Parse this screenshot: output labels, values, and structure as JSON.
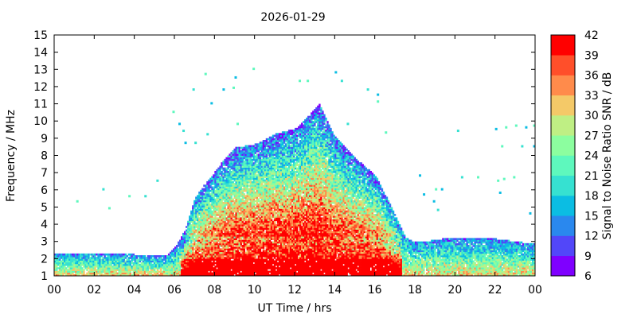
{
  "chart_data": {
    "type": "heatmap",
    "title": "2026-01-29",
    "xlabel": "UT Time / hrs",
    "ylabel": "Frequency / MHz",
    "xlim": [
      0,
      24
    ],
    "ylim": [
      1,
      15
    ],
    "x_ticks": [
      "00",
      "02",
      "04",
      "06",
      "08",
      "10",
      "12",
      "14",
      "16",
      "18",
      "20",
      "22",
      "00"
    ],
    "y_ticks": [
      "1",
      "2",
      "3",
      "4",
      "5",
      "6",
      "7",
      "8",
      "9",
      "10",
      "11",
      "12",
      "13",
      "14",
      "15"
    ],
    "colorbar": {
      "label": "Signal to Noise Ratio SNR / dB",
      "range": [
        6,
        42
      ],
      "ticks": [
        "6",
        "9",
        "12",
        "15",
        "18",
        "21",
        "24",
        "27",
        "30",
        "33",
        "36",
        "39",
        "42"
      ],
      "colors": [
        "#7f00ff",
        "#5247f9",
        "#2a88ee",
        "#0bbde3",
        "#36e1d1",
        "#5ef8bd",
        "#8cfe9f",
        "#bfef84",
        "#f4c968",
        "#ff8b4b",
        "#ff4f2a",
        "#ff0000"
      ]
    },
    "envelope": [
      {
        "t": 0.0,
        "f": 2.3
      },
      {
        "t": 2.0,
        "f": 2.3
      },
      {
        "t": 4.0,
        "f": 2.2
      },
      {
        "t": 5.6,
        "f": 2.1
      },
      {
        "t": 6.0,
        "f": 2.6
      },
      {
        "t": 6.5,
        "f": 3.6
      },
      {
        "t": 7.0,
        "f": 5.5
      },
      {
        "t": 7.5,
        "f": 6.3
      },
      {
        "t": 8.0,
        "f": 7.0
      },
      {
        "t": 8.5,
        "f": 7.8
      },
      {
        "t": 9.0,
        "f": 8.4
      },
      {
        "t": 10.0,
        "f": 8.6
      },
      {
        "t": 11.0,
        "f": 9.2
      },
      {
        "t": 12.0,
        "f": 9.5
      },
      {
        "t": 12.5,
        "f": 10.1
      },
      {
        "t": 13.2,
        "f": 11.0
      },
      {
        "t": 14.0,
        "f": 9.0
      },
      {
        "t": 15.0,
        "f": 7.8
      },
      {
        "t": 16.0,
        "f": 6.8
      },
      {
        "t": 17.0,
        "f": 4.5
      },
      {
        "t": 17.5,
        "f": 3.2
      },
      {
        "t": 18.0,
        "f": 2.9
      },
      {
        "t": 20.0,
        "f": 3.2
      },
      {
        "t": 22.0,
        "f": 3.1
      },
      {
        "t": 24.0,
        "f": 2.8
      }
    ],
    "scatter": [
      {
        "t": 1.1,
        "f": 5.4
      },
      {
        "t": 2.4,
        "f": 6.1
      },
      {
        "t": 2.7,
        "f": 5.0
      },
      {
        "t": 3.7,
        "f": 5.7
      },
      {
        "t": 4.5,
        "f": 5.7
      },
      {
        "t": 5.1,
        "f": 6.6
      },
      {
        "t": 5.9,
        "f": 10.6
      },
      {
        "t": 6.2,
        "f": 9.9
      },
      {
        "t": 6.4,
        "f": 9.5
      },
      {
        "t": 6.5,
        "f": 8.8
      },
      {
        "t": 6.9,
        "f": 11.9
      },
      {
        "t": 7.0,
        "f": 8.8
      },
      {
        "t": 7.5,
        "f": 12.8
      },
      {
        "t": 7.6,
        "f": 9.3
      },
      {
        "t": 7.8,
        "f": 11.1
      },
      {
        "t": 8.4,
        "f": 11.9
      },
      {
        "t": 8.9,
        "f": 12.0
      },
      {
        "t": 9.0,
        "f": 12.6
      },
      {
        "t": 9.1,
        "f": 9.9
      },
      {
        "t": 9.9,
        "f": 13.1
      },
      {
        "t": 12.2,
        "f": 12.4
      },
      {
        "t": 12.6,
        "f": 12.4
      },
      {
        "t": 14.0,
        "f": 12.9
      },
      {
        "t": 14.3,
        "f": 12.4
      },
      {
        "t": 14.6,
        "f": 9.9
      },
      {
        "t": 15.6,
        "f": 11.9
      },
      {
        "t": 16.1,
        "f": 11.6
      },
      {
        "t": 16.1,
        "f": 11.2
      },
      {
        "t": 16.5,
        "f": 9.4
      },
      {
        "t": 18.2,
        "f": 6.9
      },
      {
        "t": 18.4,
        "f": 5.8
      },
      {
        "t": 18.9,
        "f": 5.4
      },
      {
        "t": 19.0,
        "f": 6.1
      },
      {
        "t": 19.1,
        "f": 4.9
      },
      {
        "t": 19.3,
        "f": 6.1
      },
      {
        "t": 20.1,
        "f": 9.5
      },
      {
        "t": 20.3,
        "f": 6.8
      },
      {
        "t": 21.1,
        "f": 6.8
      },
      {
        "t": 22.1,
        "f": 6.6
      },
      {
        "t": 22.2,
        "f": 5.9
      },
      {
        "t": 22.4,
        "f": 6.7
      },
      {
        "t": 22.9,
        "f": 6.8
      },
      {
        "t": 23.7,
        "f": 4.7
      },
      {
        "t": 22.0,
        "f": 9.6
      },
      {
        "t": 22.5,
        "f": 9.7
      },
      {
        "t": 23.0,
        "f": 9.8
      },
      {
        "t": 23.5,
        "f": 9.7
      },
      {
        "t": 23.9,
        "f": 9.8
      },
      {
        "t": 22.3,
        "f": 8.6
      },
      {
        "t": 23.3,
        "f": 8.6
      },
      {
        "t": 23.9,
        "f": 8.6
      }
    ],
    "grid": false,
    "legend": "colorbar-right"
  }
}
